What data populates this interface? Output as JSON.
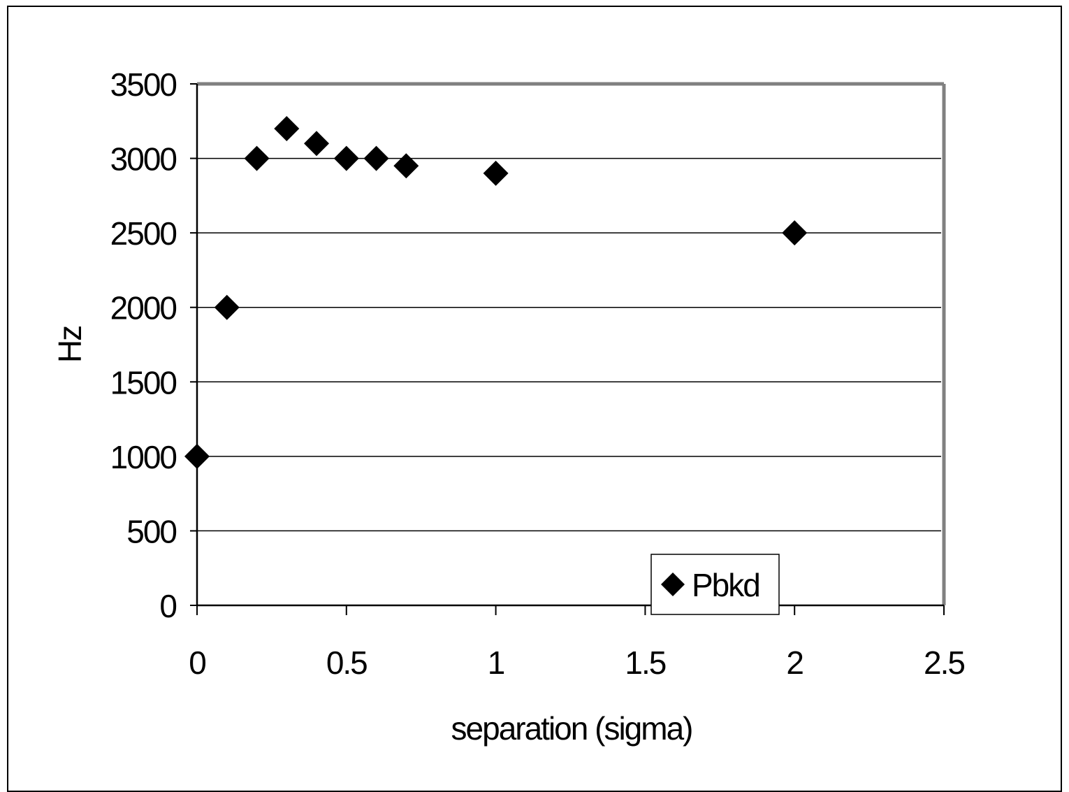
{
  "chart_data": {
    "type": "scatter",
    "title": "",
    "xlabel": "separation (sigma)",
    "ylabel": "Hz",
    "xlim": [
      0,
      2.5
    ],
    "ylim": [
      0,
      3500
    ],
    "x_ticks": [
      "0",
      "0.5",
      "1",
      "1.5",
      "2",
      "2.5"
    ],
    "y_ticks": [
      "0",
      "500",
      "1000",
      "1500",
      "2000",
      "2500",
      "3000",
      "3500"
    ],
    "grid": "horizontal",
    "legend_position": "bottom-right",
    "series": [
      {
        "name": "Pbkd",
        "marker": "diamond",
        "color": "#000000",
        "x": [
          0,
          0.1,
          0.2,
          0.3,
          0.4,
          0.5,
          0.6,
          0.7,
          1,
          2
        ],
        "y": [
          1000,
          2000,
          3000,
          3200,
          3100,
          3000,
          3000,
          2950,
          2900,
          2500
        ]
      }
    ]
  }
}
